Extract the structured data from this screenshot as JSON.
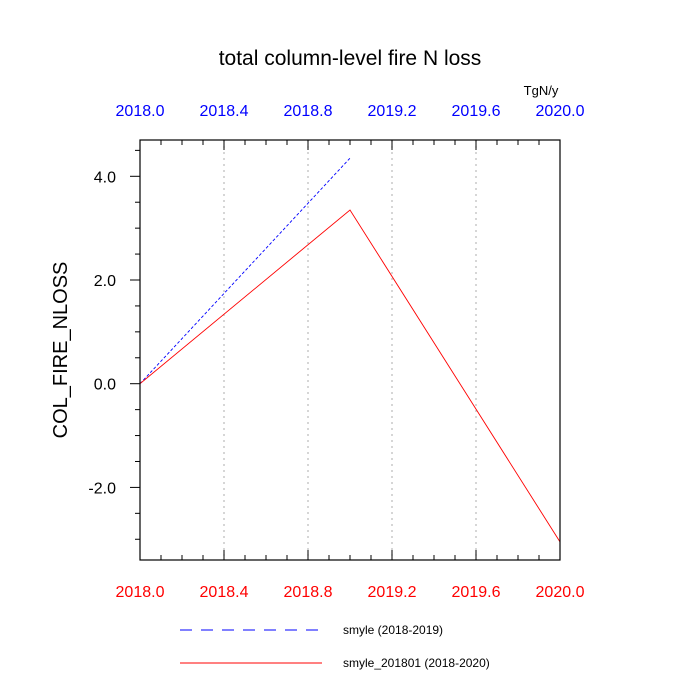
{
  "chart_data": {
    "type": "line",
    "title": "total column-level fire N loss",
    "units": "TgN/y",
    "ylabel": "COL_FIRE_NLOSS",
    "xlim": [
      2018.0,
      2020.0
    ],
    "ylim": [
      -3.4,
      4.7
    ],
    "grid": "vertical dotted",
    "x_ticks": [
      2018.0,
      2018.4,
      2018.8,
      2019.2,
      2019.6,
      2020.0
    ],
    "x_tick_labels": [
      "2018.0",
      "2018.4",
      "2018.8",
      "2019.2",
      "2019.6",
      "2020.0"
    ],
    "y_ticks": [
      -2.0,
      0.0,
      2.0,
      4.0
    ],
    "y_tick_labels": [
      "-2.0",
      "0.0",
      "2.0",
      "4.0"
    ],
    "x_minor_step": 0.1,
    "y_minor_step": 0.5,
    "top_axis_color": "#0000ff",
    "bottom_axis_color": "#ff0000",
    "legend_placement": "bottom",
    "series": [
      {
        "name": "smyle (2018-2019)",
        "color": "#0000ff",
        "dash": "dashed",
        "axis": "top",
        "x": [
          2018.0,
          2019.0
        ],
        "y": [
          0.0,
          4.35
        ]
      },
      {
        "name": "smyle_201801 (2018-2020)",
        "color": "#ff0000",
        "dash": "solid",
        "axis": "bottom",
        "x": [
          2018.0,
          2019.0,
          2020.0
        ],
        "y": [
          0.0,
          3.35,
          -3.05
        ]
      }
    ]
  }
}
